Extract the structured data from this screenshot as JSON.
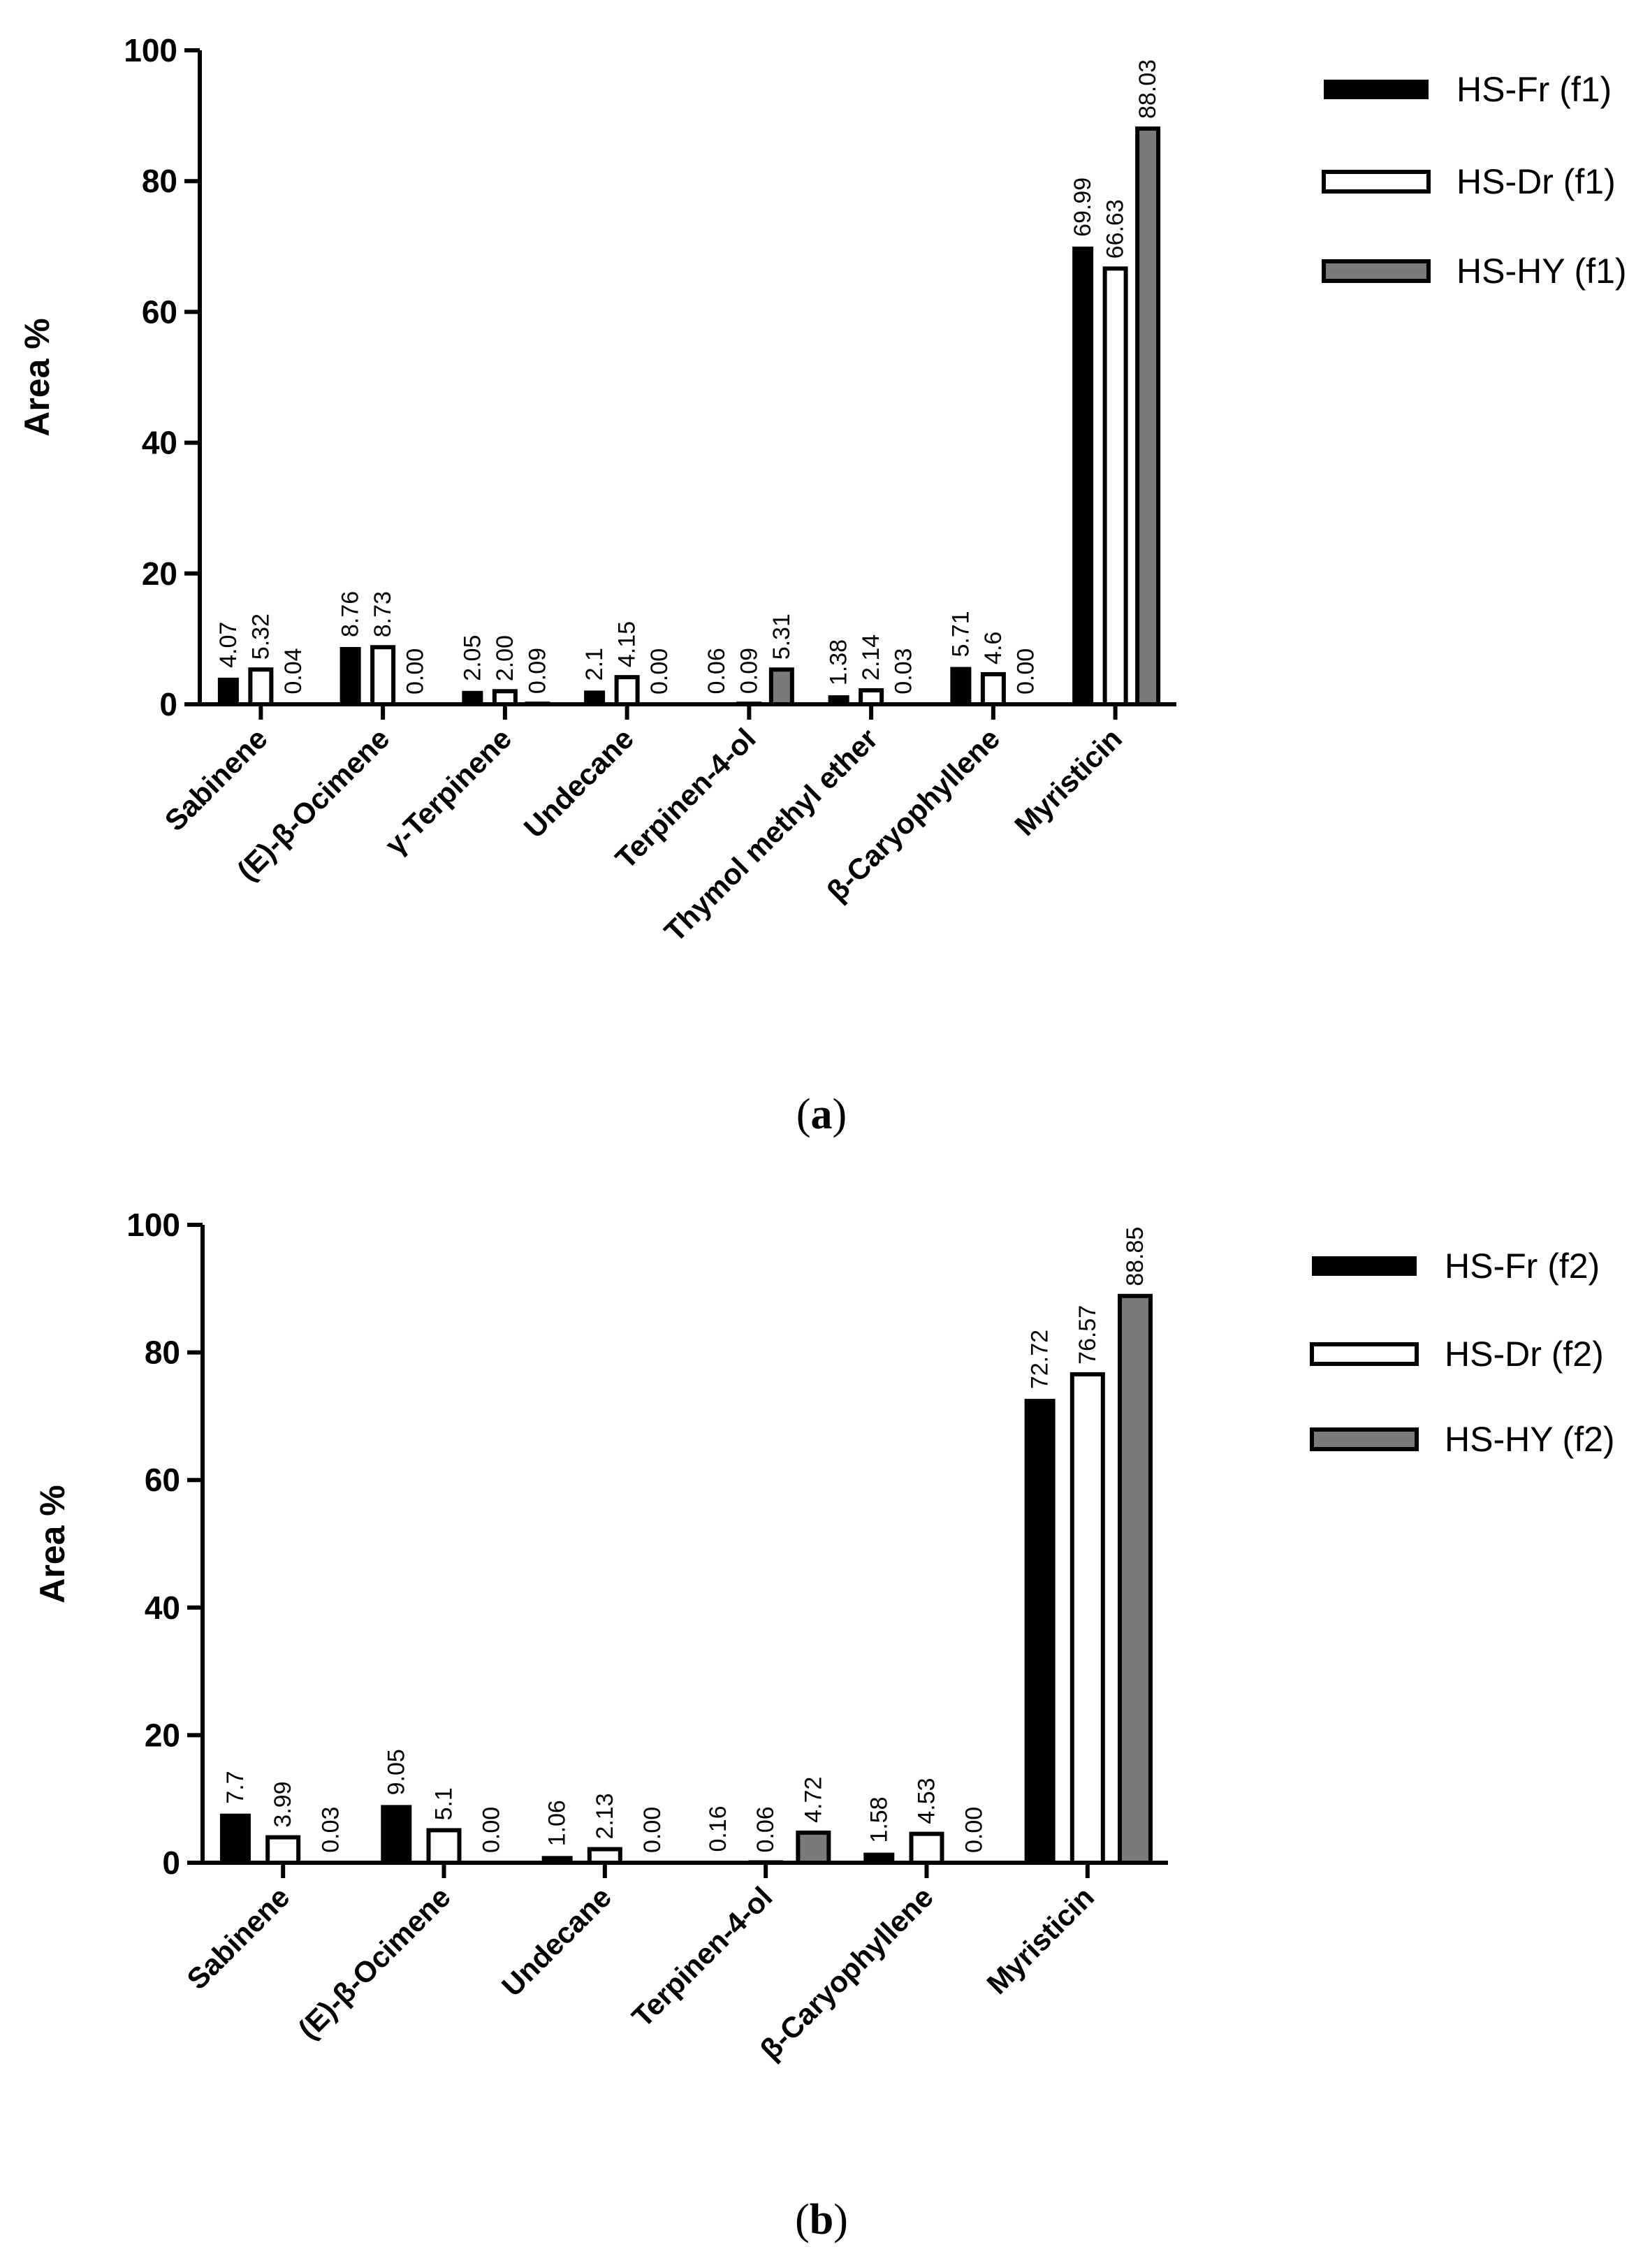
{
  "chart_data": [
    {
      "type": "bar",
      "panel": "a",
      "caption": "a",
      "ylabel": "Area %",
      "ylim": [
        0,
        100
      ],
      "yticks": [
        0,
        20,
        40,
        60,
        80,
        100
      ],
      "categories": [
        "Sabinene",
        "(E)-β-Ocimene",
        "γ-Terpinene",
        "Undecane",
        "Terpinen-4-ol",
        "Thymol methyl ether",
        "β-Caryophyllene",
        "Myristicin"
      ],
      "series": [
        {
          "name": "HS-Fr (f1)",
          "style": "solid",
          "color": "#000000",
          "values": [
            4.07,
            8.76,
            2.05,
            2.1,
            0.06,
            1.38,
            5.71,
            69.99
          ],
          "labels": [
            "4.07",
            "8.76",
            "2.05",
            "2.1",
            "0.06",
            "1.38",
            "5.71",
            "69.99"
          ]
        },
        {
          "name": "HS-Dr (f1)",
          "style": "outline",
          "color": "#ffffff",
          "values": [
            5.32,
            8.73,
            2.0,
            4.15,
            0.09,
            2.14,
            4.6,
            66.63
          ],
          "labels": [
            "5.32",
            "8.73",
            "2.00",
            "4.15",
            "0.09",
            "2.14",
            "4.6",
            "66.63"
          ]
        },
        {
          "name": "HS-HY (f1)",
          "style": "gray",
          "color": "#7a7a7a",
          "values": [
            0.04,
            0.0,
            0.09,
            0.0,
            5.31,
            0.03,
            0.0,
            88.03
          ],
          "labels": [
            "0.04",
            "0.00",
            "0.09",
            "0.00",
            "5.31",
            "0.03",
            "0.00",
            "88.03"
          ]
        }
      ]
    },
    {
      "type": "bar",
      "panel": "b",
      "caption": "b",
      "ylabel": "Area %",
      "ylim": [
        0,
        100
      ],
      "yticks": [
        0,
        20,
        40,
        60,
        80,
        100
      ],
      "categories": [
        "Sabinene",
        "(E)-β-Ocimene",
        "Undecane",
        "Terpinen-4-ol",
        "β-Caryophyllene",
        "Myristicin"
      ],
      "series": [
        {
          "name": "HS-Fr (f2)",
          "style": "solid",
          "color": "#000000",
          "values": [
            7.7,
            9.05,
            1.06,
            0.16,
            1.58,
            72.72
          ],
          "labels": [
            "7.7",
            "9.05",
            "1.06",
            "0.16",
            "1.58",
            "72.72"
          ]
        },
        {
          "name": "HS-Dr (f2)",
          "style": "outline",
          "color": "#ffffff",
          "values": [
            3.99,
            5.1,
            2.13,
            0.06,
            4.53,
            76.57
          ],
          "labels": [
            "3.99",
            "5.1",
            "2.13",
            "0.06",
            "4.53",
            "76.57"
          ]
        },
        {
          "name": "HS-HY (f2)",
          "style": "gray",
          "color": "#7a7a7a",
          "values": [
            0.03,
            0.0,
            0.0,
            4.72,
            0.0,
            88.85
          ],
          "labels": [
            "0.03",
            "0.00",
            "0.00",
            "4.72",
            "0.00",
            "88.85"
          ]
        }
      ]
    }
  ]
}
